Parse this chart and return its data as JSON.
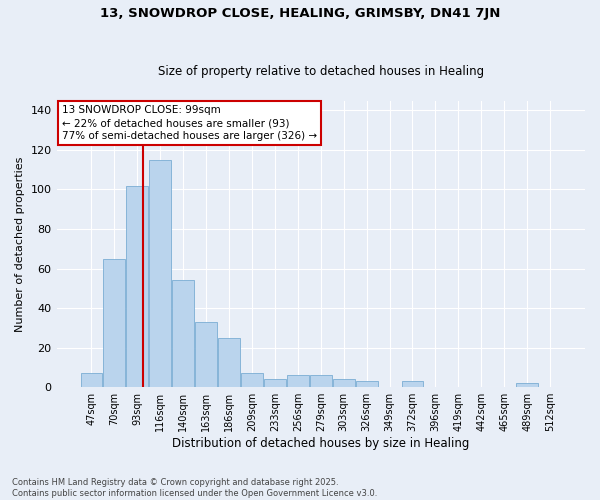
{
  "title": "13, SNOWDROP CLOSE, HEALING, GRIMSBY, DN41 7JN",
  "subtitle": "Size of property relative to detached houses in Healing",
  "xlabel": "Distribution of detached houses by size in Healing",
  "ylabel": "Number of detached properties",
  "bar_color": "#bad4ed",
  "bar_edge_color": "#7aadd4",
  "bg_color": "#e8eef7",
  "grid_color": "#ffffff",
  "categories": [
    "47sqm",
    "70sqm",
    "93sqm",
    "116sqm",
    "140sqm",
    "163sqm",
    "186sqm",
    "209sqm",
    "233sqm",
    "256sqm",
    "279sqm",
    "303sqm",
    "326sqm",
    "349sqm",
    "372sqm",
    "396sqm",
    "419sqm",
    "442sqm",
    "465sqm",
    "489sqm",
    "512sqm"
  ],
  "values": [
    7,
    65,
    102,
    115,
    54,
    33,
    25,
    7,
    4,
    6,
    6,
    4,
    3,
    0,
    3,
    0,
    0,
    0,
    0,
    2,
    0
  ],
  "vline_color": "#cc0000",
  "annotation_text": "13 SNOWDROP CLOSE: 99sqm\n← 22% of detached houses are smaller (93)\n77% of semi-detached houses are larger (326) →",
  "annotation_box_color": "#ffffff",
  "annotation_box_edge": "#cc0000",
  "ylim": [
    0,
    145
  ],
  "yticks": [
    0,
    20,
    40,
    60,
    80,
    100,
    120,
    140
  ],
  "footer": "Contains HM Land Registry data © Crown copyright and database right 2025.\nContains public sector information licensed under the Open Government Licence v3.0."
}
